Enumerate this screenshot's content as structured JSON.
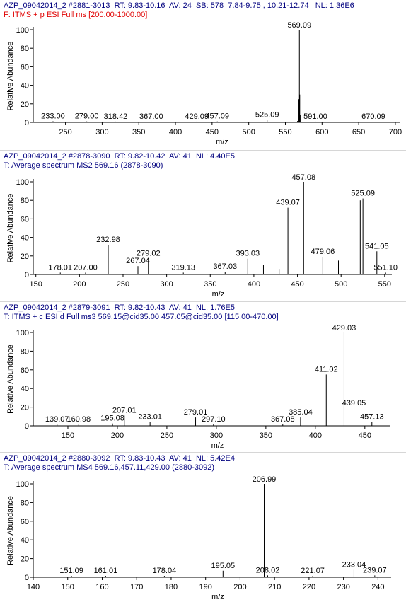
{
  "panels": [
    {
      "header1": "AZP_09042014_2 #2881-3013  RT: 9.83-10.16  AV: 24  SB: 578  7.84-9.75 , 10.21-12.74   NL: 1.36E6",
      "header2": "F: ITMS + p ESI Full ms [200.00-1000.00]",
      "header2_color": "#e00000"
    },
    {
      "header1": "AZP_09042014_2 #2878-3090  RT: 9.82-10.42  AV: 41  NL: 4.40E5",
      "header2": "T: Average spectrum MS2 569.16 (2878-3090)",
      "header2_color": "#00007f"
    },
    {
      "header1": "AZP_09042014_2 #2879-3091  RT: 9.82-10.43  AV: 41  NL: 1.76E5",
      "header2": "T: ITMS + c ESI d Full ms3 569.15@cid35.00 457.05@cid35.00 [115.00-470.00]",
      "header2_color": "#00007f"
    },
    {
      "header1": "AZP_09042014_2 #2880-3092  RT: 9.83-10.43  AV: 41  NL: 5.42E4",
      "header2": "T: Average spectrum MS4 569.16,457.11,429.00 (2880-3092)",
      "header2_color": "#00007f"
    }
  ],
  "chart_data": [
    {
      "type": "bar",
      "xlabel": "m/z",
      "ylabel": "Relative Abundance",
      "xlim": [
        206,
        702
      ],
      "ylim": [
        0,
        100
      ],
      "xticks": [
        250,
        300,
        350,
        400,
        450,
        500,
        550,
        600,
        650,
        700
      ],
      "yticks": [
        0,
        20,
        40,
        60,
        80,
        100
      ],
      "peaks": [
        {
          "mz": 233.0,
          "y": 1.2,
          "label": "233.00"
        },
        {
          "mz": 279.0,
          "y": 1.0,
          "label": "279.00"
        },
        {
          "mz": 318.42,
          "y": 0.8,
          "label": "318.42"
        },
        {
          "mz": 367.0,
          "y": 0.8,
          "label": "367.00"
        },
        {
          "mz": 429.09,
          "y": 0.8,
          "label": "429.09"
        },
        {
          "mz": 457.09,
          "y": 1.0,
          "label": "457.09"
        },
        {
          "mz": 525.09,
          "y": 2.5,
          "label": "525.09"
        },
        {
          "mz": 566.5,
          "y": 1.5
        },
        {
          "mz": 568.3,
          "y": 25
        },
        {
          "mz": 569.09,
          "y": 100,
          "label": "569.09"
        },
        {
          "mz": 569.6,
          "y": 30
        },
        {
          "mz": 570.2,
          "y": 8
        },
        {
          "mz": 591.0,
          "y": 0.8,
          "label": "591.00"
        },
        {
          "mz": 670.09,
          "y": 0.6,
          "label": "670.09"
        }
      ]
    },
    {
      "type": "bar",
      "xlabel": "m/z",
      "ylabel": "Relative Abundance",
      "xlim": [
        147,
        555
      ],
      "ylim": [
        0,
        100
      ],
      "xticks": [
        150,
        200,
        250,
        300,
        350,
        400,
        450,
        500,
        550
      ],
      "yticks": [
        0,
        20,
        40,
        60,
        80,
        100
      ],
      "peaks": [
        {
          "mz": 178.01,
          "y": 2,
          "label": "178.01"
        },
        {
          "mz": 207.0,
          "y": 2,
          "label": "207.00"
        },
        {
          "mz": 232.98,
          "y": 32,
          "label": "232.98"
        },
        {
          "mz": 267.04,
          "y": 9,
          "label": "267.04"
        },
        {
          "mz": 279.02,
          "y": 17,
          "label": "279.02"
        },
        {
          "mz": 319.13,
          "y": 2,
          "label": "319.13"
        },
        {
          "mz": 367.03,
          "y": 3,
          "label": "367.03"
        },
        {
          "mz": 393.03,
          "y": 17,
          "label": "393.03"
        },
        {
          "mz": 411.0,
          "y": 10
        },
        {
          "mz": 429.0,
          "y": 6
        },
        {
          "mz": 439.07,
          "y": 72,
          "label": "439.07"
        },
        {
          "mz": 457.08,
          "y": 100,
          "label": "457.08"
        },
        {
          "mz": 479.06,
          "y": 19,
          "label": "479.06"
        },
        {
          "mz": 497.0,
          "y": 15
        },
        {
          "mz": 522.0,
          "y": 80
        },
        {
          "mz": 525.09,
          "y": 82,
          "label": "525.09"
        },
        {
          "mz": 541.05,
          "y": 25,
          "label": "541.05"
        },
        {
          "mz": 551.1,
          "y": 2,
          "label": "551.10"
        }
      ]
    },
    {
      "type": "bar",
      "xlabel": "m/z",
      "ylabel": "Relative Abundance",
      "xlim": [
        115,
        473
      ],
      "ylim": [
        0,
        100
      ],
      "xticks": [
        150,
        200,
        250,
        300,
        350,
        400,
        450
      ],
      "yticks": [
        0,
        20,
        40,
        60,
        80,
        100
      ],
      "peaks": [
        {
          "mz": 139.07,
          "y": 1.5,
          "label": "139.07"
        },
        {
          "mz": 160.98,
          "y": 1.5,
          "label": "160.98"
        },
        {
          "mz": 195.08,
          "y": 2.5,
          "label": "195.08"
        },
        {
          "mz": 207.01,
          "y": 11,
          "label": "207.01"
        },
        {
          "mz": 233.01,
          "y": 4,
          "label": "233.01"
        },
        {
          "mz": 279.01,
          "y": 9,
          "label": "279.01"
        },
        {
          "mz": 297.1,
          "y": 1.5,
          "label": "297.10"
        },
        {
          "mz": 367.08,
          "y": 1.5,
          "label": "367.08"
        },
        {
          "mz": 385.04,
          "y": 9,
          "label": "385.04"
        },
        {
          "mz": 411.02,
          "y": 55,
          "label": "411.02"
        },
        {
          "mz": 429.03,
          "y": 100,
          "label": "429.03"
        },
        {
          "mz": 439.05,
          "y": 19,
          "label": "439.05"
        },
        {
          "mz": 457.13,
          "y": 4,
          "label": "457.13"
        }
      ]
    },
    {
      "type": "bar",
      "xlabel": "m/z",
      "ylabel": "Relative Abundance",
      "xlim": [
        140,
        243
      ],
      "ylim": [
        0,
        100
      ],
      "xticks": [
        140,
        150,
        160,
        170,
        180,
        190,
        200,
        210,
        220,
        230,
        240
      ],
      "yticks": [
        0,
        20,
        40,
        60,
        80,
        100
      ],
      "peaks": [
        {
          "mz": 151.09,
          "y": 1.5,
          "label": "151.09"
        },
        {
          "mz": 161.01,
          "y": 1.5,
          "label": "161.01"
        },
        {
          "mz": 178.04,
          "y": 1.5,
          "label": "178.04"
        },
        {
          "mz": 195.05,
          "y": 7,
          "label": "195.05"
        },
        {
          "mz": 206.99,
          "y": 100,
          "label": "206.99"
        },
        {
          "mz": 208.02,
          "y": 2,
          "label": "208.02"
        },
        {
          "mz": 221.07,
          "y": 1.5,
          "label": "221.07"
        },
        {
          "mz": 233.04,
          "y": 8,
          "label": "233.04"
        },
        {
          "mz": 239.07,
          "y": 2,
          "label": "239.07"
        }
      ]
    }
  ]
}
